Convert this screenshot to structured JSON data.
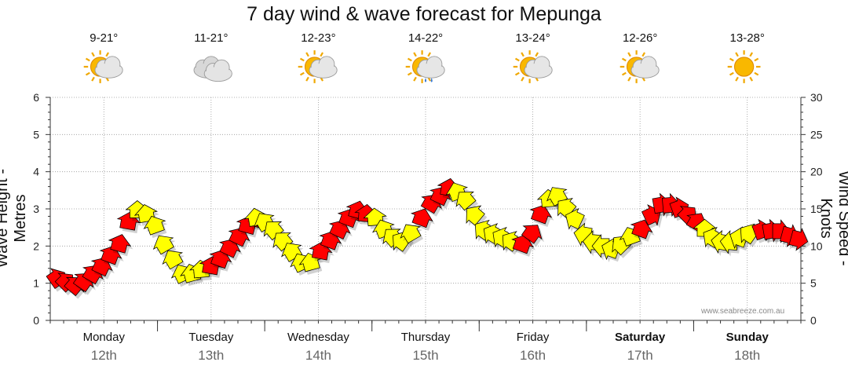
{
  "title": "7 day wind & wave forecast for Mepunga",
  "watermark": "www.seabreeze.com.au",
  "colors": {
    "light_wind": "#ffff00",
    "strong_wind": "#ff0000",
    "grid": "#999999"
  },
  "days": [
    {
      "name": "Monday",
      "date": "12th",
      "temp": "9-21°",
      "icon": "partly-cloudy-icon",
      "bold": false
    },
    {
      "name": "Tuesday",
      "date": "13th",
      "temp": "11-21°",
      "icon": "cloudy-icon",
      "bold": false
    },
    {
      "name": "Wednesday",
      "date": "14th",
      "temp": "12-23°",
      "icon": "partly-cloudy-icon",
      "bold": false
    },
    {
      "name": "Thursday",
      "date": "15th",
      "temp": "14-22°",
      "icon": "shower-icon",
      "bold": false
    },
    {
      "name": "Friday",
      "date": "16th",
      "temp": "13-24°",
      "icon": "partly-cloudy-icon",
      "bold": false
    },
    {
      "name": "Saturday",
      "date": "17th",
      "temp": "12-26°",
      "icon": "partly-cloudy-icon",
      "bold": true
    },
    {
      "name": "Sunday",
      "date": "18th",
      "temp": "13-28°",
      "icon": "sunny-icon",
      "bold": true
    }
  ],
  "chart_data": {
    "type": "line",
    "title": "7 day wind & wave forecast for Mepunga",
    "ylabel_left": "Wave Height - Metres",
    "ylabel_right": "Wind Speed - Knots",
    "ylim_left": [
      0,
      6
    ],
    "ylim_right": [
      0,
      30
    ],
    "yticks_left": [
      "0",
      "1",
      "2",
      "3",
      "4",
      "5",
      "6"
    ],
    "yticks_right": [
      "0",
      "5",
      "10",
      "15",
      "20",
      "25",
      "30"
    ],
    "grid": true,
    "series": [
      {
        "name": "Wind Speed",
        "unit": "knots",
        "hours_per_step": 3,
        "values": [
          5.5,
          5,
          4.5,
          5,
          6,
          7,
          8.5,
          10,
          13,
          14.5,
          14,
          12.5,
          10,
          8,
          6,
          6,
          6.5,
          7,
          8,
          9.5,
          11,
          12.5,
          13.5,
          13,
          12,
          10.5,
          9,
          7.5,
          7.5,
          9,
          10.5,
          12,
          13.5,
          14.5,
          14,
          13.5,
          12,
          11,
          10.5,
          11.5,
          13.5,
          15.5,
          16.5,
          17.5,
          17,
          16,
          14,
          12,
          11.5,
          11,
          10.5,
          10,
          11.5,
          14,
          16,
          16.5,
          15,
          13.5,
          11.5,
          10.5,
          10,
          9.5,
          10,
          11,
          12,
          14,
          15.5,
          15.5,
          15,
          14,
          13,
          12,
          11,
          10.5,
          10.5,
          11,
          11.5,
          12,
          12,
          12,
          11.5,
          11
        ]
      },
      {
        "name": "Wind Direction",
        "unit": "degrees-from",
        "values": [
          235,
          225,
          220,
          215,
          210,
          205,
          200,
          195,
          190,
          180,
          170,
          160,
          150,
          150,
          155,
          165,
          175,
          190,
          200,
          205,
          205,
          195,
          170,
          150,
          140,
          140,
          150,
          155,
          165,
          190,
          200,
          205,
          200,
          195,
          185,
          175,
          160,
          140,
          125,
          150,
          200,
          210,
          205,
          190,
          160,
          140,
          130,
          125,
          120,
          120,
          125,
          200,
          215,
          200,
          175,
          150,
          130,
          115,
          100,
          95,
          90,
          110,
          135,
          160,
          200,
          245,
          260,
          265,
          250,
          225,
          210,
          180,
          120,
          100,
          95,
          110,
          125,
          250,
          260,
          270,
          285,
          285
        ]
      }
    ]
  }
}
